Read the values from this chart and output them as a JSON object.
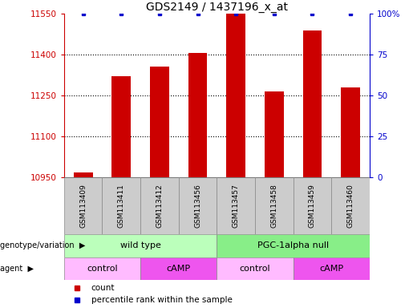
{
  "title": "GDS2149 / 1437196_x_at",
  "samples": [
    "GSM113409",
    "GSM113411",
    "GSM113412",
    "GSM113456",
    "GSM113457",
    "GSM113458",
    "GSM113459",
    "GSM113460"
  ],
  "counts": [
    10968,
    11320,
    11355,
    11405,
    11550,
    11265,
    11490,
    11280
  ],
  "percentile_ranks": [
    100,
    100,
    100,
    100,
    100,
    100,
    100,
    100
  ],
  "ylim_left": [
    10950,
    11550
  ],
  "ylim_right": [
    0,
    100
  ],
  "yticks_left": [
    10950,
    11100,
    11250,
    11400,
    11550
  ],
  "yticks_right": [
    0,
    25,
    50,
    75,
    100
  ],
  "bar_color": "#cc0000",
  "dot_color": "#0000cc",
  "title_fontsize": 10,
  "axis_label_color_left": "#cc0000",
  "axis_label_color_right": "#0000cc",
  "genotype_groups": [
    {
      "label": "wild type",
      "start": 0,
      "end": 4,
      "color": "#bbffbb"
    },
    {
      "label": "PGC-1alpha null",
      "start": 4,
      "end": 8,
      "color": "#88ee88"
    }
  ],
  "agent_groups": [
    {
      "label": "control",
      "start": 0,
      "end": 2,
      "color": "#ffbbff"
    },
    {
      "label": "cAMP",
      "start": 2,
      "end": 4,
      "color": "#ee55ee"
    },
    {
      "label": "control",
      "start": 4,
      "end": 6,
      "color": "#ffbbff"
    },
    {
      "label": "cAMP",
      "start": 6,
      "end": 8,
      "color": "#ee55ee"
    }
  ],
  "legend_items": [
    {
      "label": "count",
      "color": "#cc0000"
    },
    {
      "label": "percentile rank within the sample",
      "color": "#0000cc"
    }
  ],
  "bar_width": 0.5,
  "sample_box_color": "#cccccc",
  "sample_box_edge": "#888888"
}
